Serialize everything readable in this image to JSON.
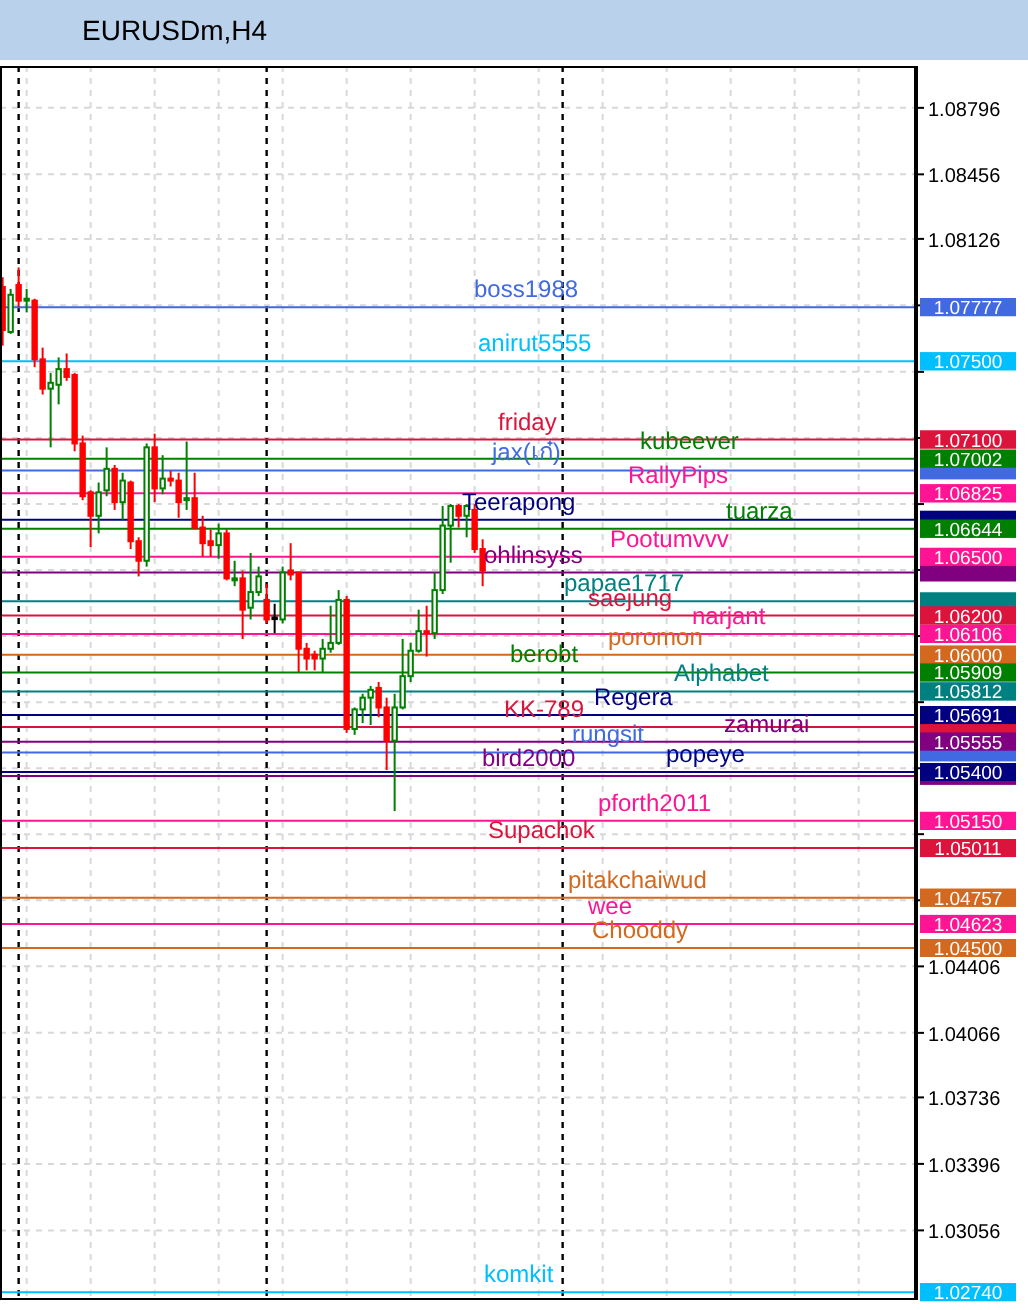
{
  "chart_data": {
    "type": "candlestick",
    "title": "EURUSDm,H4",
    "categories": [
      null,
      null,
      null,
      null,
      null,
      null,
      null,
      null,
      null,
      null,
      null,
      null,
      null,
      null,
      null,
      null,
      null,
      null,
      null,
      null,
      null,
      null,
      null,
      null,
      null,
      null,
      null,
      null,
      null,
      null,
      null,
      null,
      null,
      null,
      null,
      null,
      null,
      null,
      null,
      null,
      null,
      null,
      null,
      null,
      null,
      null,
      null,
      null,
      null,
      null,
      null,
      null,
      null,
      null,
      null,
      null,
      null,
      null,
      null,
      null,
      null,
      null,
      null,
      null,
      null,
      null,
      null,
      null,
      null,
      null,
      null,
      null,
      null,
      null,
      null,
      null,
      null,
      null,
      null,
      null,
      null,
      null,
      null,
      null,
      null,
      null,
      null,
      null,
      null,
      null,
      null,
      null,
      null,
      null,
      null,
      null,
      null,
      null,
      null,
      null,
      null,
      null,
      null,
      null,
      null,
      null,
      null,
      null,
      null,
      null,
      null,
      null,
      null,
      null
    ],
    "ohlc": [
      [
        1.0788,
        1.0793,
        1.0758,
        1.0766
      ],
      [
        1.0765,
        1.0787,
        1.0764,
        1.0784
      ],
      [
        1.0789,
        1.0798,
        1.0778,
        1.0781
      ],
      [
        1.0781,
        1.0787,
        1.0775,
        1.0782
      ],
      [
        1.0781,
        1.0782,
        1.0747,
        1.0751
      ],
      [
        1.0751,
        1.0757,
        1.0733,
        1.0736
      ],
      [
        1.0736,
        1.0744,
        1.0706,
        1.0739
      ],
      [
        1.0738,
        1.0752,
        1.0728,
        1.0746
      ],
      [
        1.0746,
        1.0754,
        1.074,
        1.0742
      ],
      [
        1.0743,
        1.0744,
        1.0704,
        1.0708
      ],
      [
        1.0708,
        1.0712,
        1.0679,
        1.0681
      ],
      [
        1.0683,
        1.0684,
        1.0655,
        1.0671
      ],
      [
        1.0671,
        1.0688,
        1.0662,
        1.0683
      ],
      [
        1.0684,
        1.0706,
        1.0681,
        1.0695
      ],
      [
        1.0695,
        1.0697,
        1.0674,
        1.0678
      ],
      [
        1.0678,
        1.0693,
        1.0669,
        1.0689
      ],
      [
        1.0688,
        1.0689,
        1.0654,
        1.0658
      ],
      [
        1.0658,
        1.066,
        1.064,
        1.0648
      ],
      [
        1.0648,
        1.0708,
        1.0645,
        1.0706
      ],
      [
        1.0706,
        1.0713,
        1.0678,
        1.0685
      ],
      [
        1.0685,
        1.0702,
        1.0682,
        1.069
      ],
      [
        1.069,
        1.0694,
        1.0686,
        1.0689
      ],
      [
        1.0689,
        1.0693,
        1.067,
        1.0678
      ],
      [
        1.0679,
        1.0709,
        1.0674,
        1.068
      ],
      [
        1.068,
        1.0693,
        1.0664,
        1.0665
      ],
      [
        1.0665,
        1.0671,
        1.065,
        1.0657
      ],
      [
        1.0658,
        1.0664,
        1.065,
        1.0656
      ],
      [
        1.0656,
        1.0667,
        1.0649,
        1.0662
      ],
      [
        1.0662,
        1.0664,
        1.0638,
        1.0639
      ],
      [
        1.0638,
        1.0648,
        1.0635,
        1.0639
      ],
      [
        1.0639,
        1.0643,
        1.0608,
        1.0623
      ],
      [
        1.0624,
        1.0652,
        1.0618,
        1.0632
      ],
      [
        1.0632,
        1.0645,
        1.063,
        1.064
      ],
      [
        1.0628,
        1.0636,
        1.0616,
        1.0618
      ],
      [
        1.0619,
        1.0626,
        1.0611,
        1.0619
      ],
      [
        1.0618,
        1.0645,
        1.0616,
        1.0642
      ],
      [
        1.0643,
        1.0657,
        1.0638,
        1.0641
      ],
      [
        1.0642,
        1.0642,
        1.0591,
        1.0603
      ],
      [
        1.0603,
        1.0606,
        1.0592,
        1.0598
      ],
      [
        1.06,
        1.0602,
        1.0592,
        1.0598
      ],
      [
        1.0598,
        1.0608,
        1.0591,
        1.0603
      ],
      [
        1.0603,
        1.0625,
        1.0601,
        1.0606
      ],
      [
        1.0606,
        1.0633,
        1.0605,
        1.0628
      ],
      [
        1.0628,
        1.063,
        1.056,
        1.0562
      ],
      [
        1.0562,
        1.0573,
        1.0559,
        1.0572
      ],
      [
        1.0572,
        1.058,
        1.0565,
        1.0578
      ],
      [
        1.0578,
        1.0584,
        1.0564,
        1.0582
      ],
      [
        1.0583,
        1.0586,
        1.0568,
        1.0573
      ],
      [
        1.0573,
        1.0578,
        1.0541,
        1.0556
      ],
      [
        1.0556,
        1.058,
        1.052,
        1.0573
      ],
      [
        1.0573,
        1.0608,
        1.0572,
        1.0589
      ],
      [
        1.0589,
        1.0606,
        1.0586,
        1.0602
      ],
      [
        1.0602,
        1.0623,
        1.0601,
        1.0612
      ],
      [
        1.0612,
        1.0625,
        1.0599,
        1.0611
      ],
      [
        1.0611,
        1.0642,
        1.0608,
        1.0633
      ],
      [
        1.0633,
        1.0676,
        1.0631,
        1.0666
      ],
      [
        1.0666,
        1.0677,
        1.0647,
        1.0676
      ],
      [
        1.0676,
        1.0677,
        1.0665,
        1.0671
      ],
      [
        1.0671,
        1.0677,
        1.066,
        1.0676
      ],
      [
        1.0674,
        1.0677,
        1.0652,
        1.0654
      ],
      [
        1.0654,
        1.0659,
        1.0635,
        1.0643
      ],
      null,
      null,
      null,
      null,
      null,
      null,
      null,
      null,
      null,
      null,
      null,
      null,
      null,
      null,
      null,
      null,
      null,
      null,
      null,
      null,
      null,
      null,
      null,
      null,
      null,
      null,
      null,
      null,
      null,
      null,
      null,
      null,
      null,
      null,
      null,
      null,
      null,
      null,
      null,
      null,
      null,
      null,
      null,
      null,
      null,
      null,
      null,
      null,
      null,
      null,
      null,
      null,
      null
    ],
    "ylim": [
      1.027,
      1.0901
    ],
    "yticks": [
      1.08796,
      1.08456,
      1.08126,
      {
        "value": 1.07786,
        "label": null
      },
      {
        "value": 1.07446,
        "label": null
      },
      {
        "value": 1.07108,
        "label": null
      },
      {
        "value": 1.0677,
        "label": null
      },
      {
        "value": 1.06433,
        "label": null
      },
      {
        "value": 1.06095,
        "label": null
      },
      {
        "value": 1.05757,
        "label": null
      },
      {
        "value": 1.05419,
        "label": null
      },
      {
        "value": 1.05082,
        "label": null
      },
      {
        "value": 1.04744,
        "label": null
      },
      1.04406,
      1.04066,
      1.03736,
      1.03396,
      1.03056
    ],
    "grid": true,
    "ref_lines": [
      {
        "axis": "y",
        "value": 1.07777,
        "label": "boss1988",
        "color": "#4169e1"
      },
      {
        "axis": "y",
        "value": 1.075,
        "label": "anirut5555",
        "color": "#00bfff"
      },
      {
        "axis": "y",
        "value": 1.071,
        "label": "friday",
        "color": "#dc143c"
      },
      {
        "axis": "y",
        "value": 1.07002,
        "label": "kubeever",
        "color": "#008000"
      },
      {
        "axis": "y",
        "value": 1.06942,
        "label": "jax(เก๋)",
        "color": "#4169e1"
      },
      {
        "axis": "y",
        "value": 1.06825,
        "label": "RallyPips",
        "color": "#ff1493"
      },
      {
        "axis": "y",
        "value": 1.0669,
        "label": "Teerapong",
        "color": "#000080"
      },
      {
        "axis": "y",
        "value": 1.06644,
        "label": "tuarza",
        "color": "#008000"
      },
      {
        "axis": "y",
        "value": 1.065,
        "label": "Pootumvvv",
        "color": "#ff1493"
      },
      {
        "axis": "y",
        "value": 1.0642,
        "label": "ohlinsyss",
        "color": "#800080"
      },
      {
        "axis": "y",
        "value": 1.06273,
        "label": "papae1717",
        "color": "#008080"
      },
      {
        "axis": "y",
        "value": 1.062,
        "label": "saejung",
        "color": "#dc143c"
      },
      {
        "axis": "y",
        "value": 1.06106,
        "label": "narjant",
        "color": "#ff1493"
      },
      {
        "axis": "y",
        "value": 1.06,
        "label": "poromon",
        "color": "#d2691e"
      },
      {
        "axis": "y",
        "value": 1.05909,
        "label": "berobt",
        "color": "#008000"
      },
      {
        "axis": "y",
        "value": 1.05812,
        "label": "Alphabet",
        "color": "#008080"
      },
      {
        "axis": "y",
        "value": 1.05691,
        "label": "Regera",
        "color": "#000080"
      },
      {
        "axis": "y",
        "value": 1.0563,
        "label": "KK-789",
        "color": "#dc143c"
      },
      {
        "axis": "y",
        "value": 1.05555,
        "label": "zamurai",
        "color": "#800080"
      },
      {
        "axis": "y",
        "value": 1.055,
        "label": "rungsit",
        "color": "#4169e1"
      },
      {
        "axis": "y",
        "value": 1.054,
        "label": "popeye",
        "color": "#000080"
      },
      {
        "axis": "y",
        "value": 1.0538,
        "label": "bird2000",
        "color": "#800080"
      },
      {
        "axis": "y",
        "value": 1.0515,
        "label": "pforth2011",
        "color": "#ff1493"
      },
      {
        "axis": "y",
        "value": 1.05011,
        "label": "Supachok",
        "color": "#dc143c"
      },
      {
        "axis": "y",
        "value": 1.04757,
        "label": "pitakchaiwud",
        "color": "#d2691e"
      },
      {
        "axis": "y",
        "value": 1.04623,
        "label": "wee",
        "color": "#ff1493"
      },
      {
        "axis": "y",
        "value": 1.045,
        "label": "Chooddy",
        "color": "#d2691e"
      },
      {
        "axis": "y",
        "value": 1.0274,
        "label": "komkit",
        "color": "#00bfff"
      }
    ],
    "annotations": [
      "1.07777",
      "1.07500",
      "1.07100",
      "1.07002",
      "1.06825",
      "1.06644",
      "1.06500",
      "1.06200",
      "1.06106",
      "1.06000",
      "1.05909",
      "1.05812",
      "1.05691",
      "1.05555",
      "1.05400",
      "1.05150",
      "1.05011",
      "1.04757",
      "1.04623",
      "1.04500",
      "1.02740"
    ]
  }
}
